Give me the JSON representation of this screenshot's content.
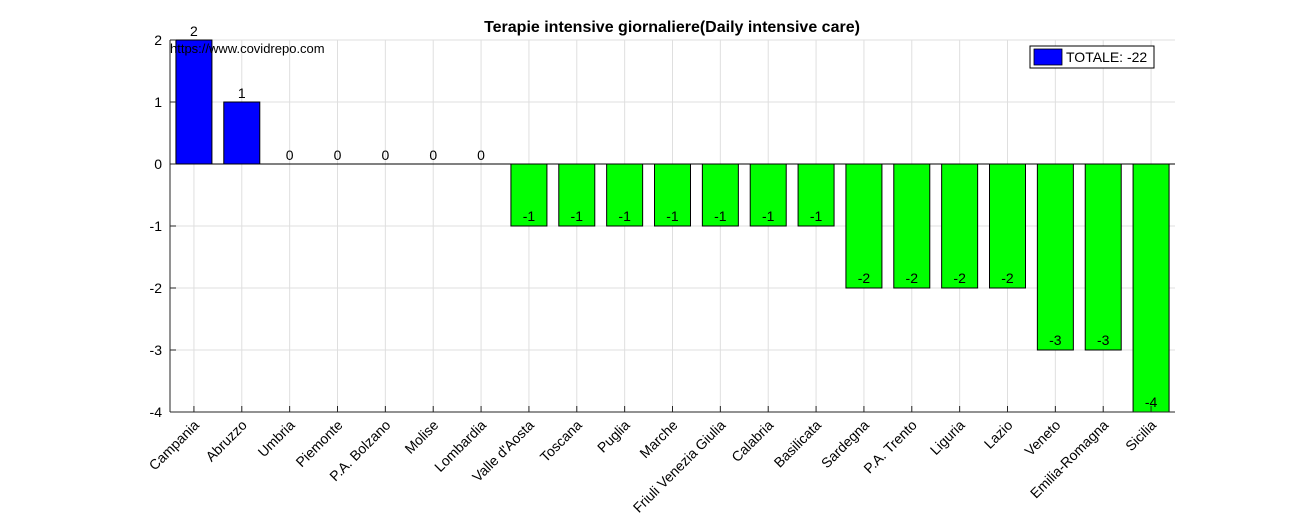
{
  "chart_data": {
    "type": "bar",
    "title": "Terapie intensive giornaliere(Daily intensive care)",
    "annotation": "https://www.covidrepo.com",
    "categories": [
      "Campania",
      "Abruzzo",
      "Umbria",
      "Piemonte",
      "P.A. Bolzano",
      "Molise",
      "Lombardia",
      "Valle d'Aosta",
      "Toscana",
      "Puglia",
      "Marche",
      "Friuli Venezia Giulia",
      "Calabria",
      "Basilicata",
      "Sardegna",
      "P.A. Trento",
      "Liguria",
      "Lazio",
      "Veneto",
      "Emilia-Romagna",
      "Sicilia"
    ],
    "values": [
      2,
      1,
      0,
      0,
      0,
      0,
      0,
      -1,
      -1,
      -1,
      -1,
      -1,
      -1,
      -1,
      -2,
      -2,
      -2,
      -2,
      -3,
      -3,
      -4
    ],
    "ylim": [
      -4,
      2
    ],
    "yticks": [
      2,
      1,
      0,
      -1,
      -2,
      -3,
      -4
    ],
    "grid": true,
    "legend": {
      "label": "TOTALE: -22",
      "position": "top-right",
      "color": "#0000ff"
    },
    "colors": {
      "positive": "#0000ff",
      "negative": "#00ff00"
    }
  }
}
